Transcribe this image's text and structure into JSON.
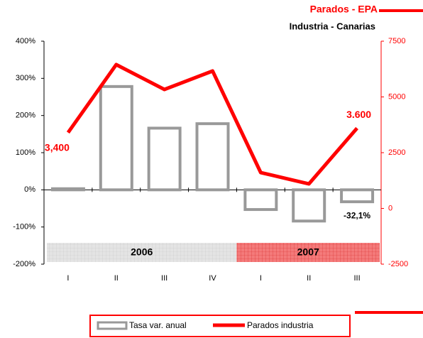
{
  "chart_data": {
    "type": "bar_line",
    "title": "Parados - EPA",
    "subtitle": "Industria - Canarias",
    "categories": [
      "I",
      "II",
      "III",
      "IV",
      "I",
      "II",
      "III"
    ],
    "year_bands": [
      {
        "label": "2006",
        "color": "#dddddd"
      },
      {
        "label": "2007",
        "color": "#f47a7a"
      }
    ],
    "series": [
      {
        "name": "Tasa var. anual",
        "color": "#999999",
        "values": [
          3,
          278,
          166,
          178,
          -53,
          -84,
          -32.1
        ],
        "value_labels": [
          null,
          null,
          null,
          null,
          null,
          null,
          "-32,1%"
        ]
      },
      {
        "name": "Parados industria",
        "color": "#ff0000",
        "axis": "y2",
        "values": [
          3400,
          6450,
          5335,
          6163,
          1608,
          1099,
          3600
        ],
        "value_labels": [
          "3,400",
          null,
          null,
          null,
          null,
          null,
          "3.600"
        ]
      }
    ],
    "ylim": [
      -200,
      400
    ],
    "yticks": [
      {
        "value": -200,
        "label": "-200%"
      },
      {
        "value": -100,
        "label": "-100%"
      },
      {
        "value": 0,
        "label": "0%"
      },
      {
        "value": 100,
        "label": "100%"
      },
      {
        "value": 200,
        "label": "200%"
      },
      {
        "value": 300,
        "label": "300%"
      },
      {
        "value": 400,
        "label": "400%"
      }
    ],
    "y2lim": [
      -2500,
      7500
    ],
    "y2ticks": [
      -2500,
      0,
      2500,
      5000,
      7500
    ]
  }
}
